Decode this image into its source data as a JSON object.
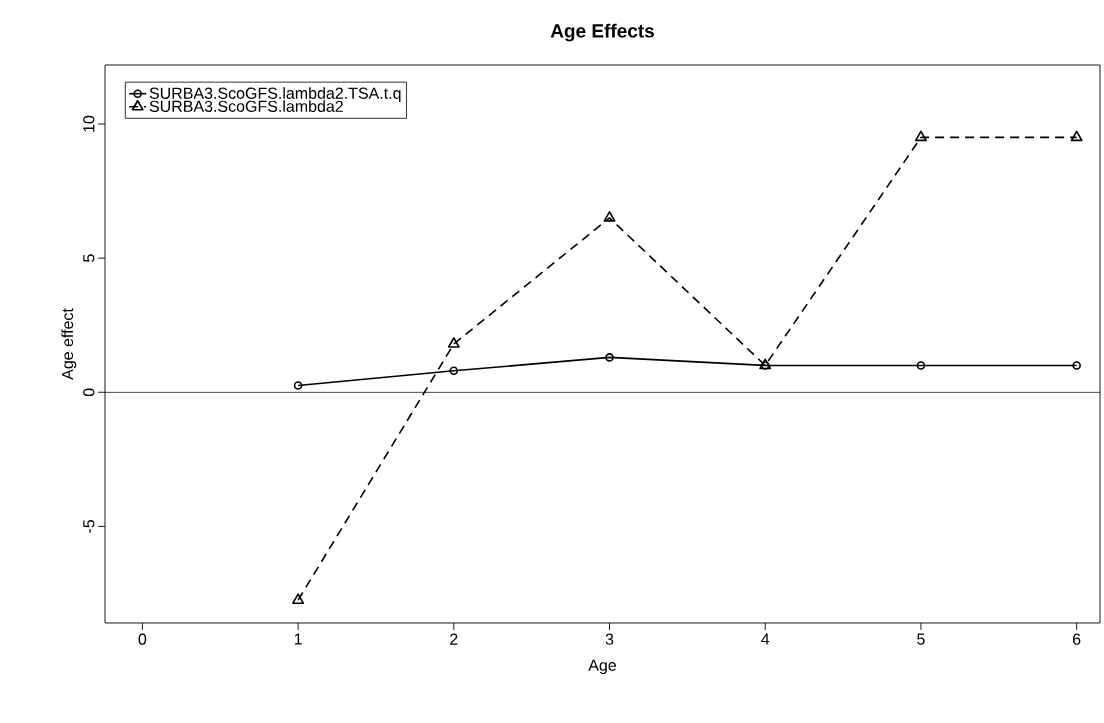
{
  "chart_data": {
    "type": "line",
    "title": "**Age Effects**",
    "xlabel": "Age",
    "ylabel": "Age effect",
    "x": [
      1,
      2,
      3,
      4,
      5,
      6
    ],
    "series": [
      {
        "name": "SURBA3.ScoGFS.lambda2.TSA.t.q",
        "color": "#000000",
        "marker": "circle",
        "line_style": "solid",
        "values": [
          0.25,
          0.8,
          1.3,
          1.0,
          1.0,
          1.0
        ]
      },
      {
        "name": "SURBA3.ScoGFS.lambda2",
        "color": "#000000",
        "marker": "triangle",
        "line_style": "dashed",
        "values": [
          -7.75,
          1.8,
          6.5,
          1.0,
          9.5,
          9.5
        ]
      }
    ],
    "xlim": [
      -0.24,
      6.15
    ],
    "ylim": [
      -8.6,
      12.2
    ],
    "xticks": [
      0,
      1,
      2,
      3,
      4,
      5,
      6
    ],
    "yticks": [
      -5,
      0,
      5,
      10
    ],
    "ref_lines": [
      {
        "axis": "y",
        "value": 0,
        "color": "#000000",
        "line_style": "solid"
      }
    ],
    "grid": false,
    "legend": "top left"
  }
}
